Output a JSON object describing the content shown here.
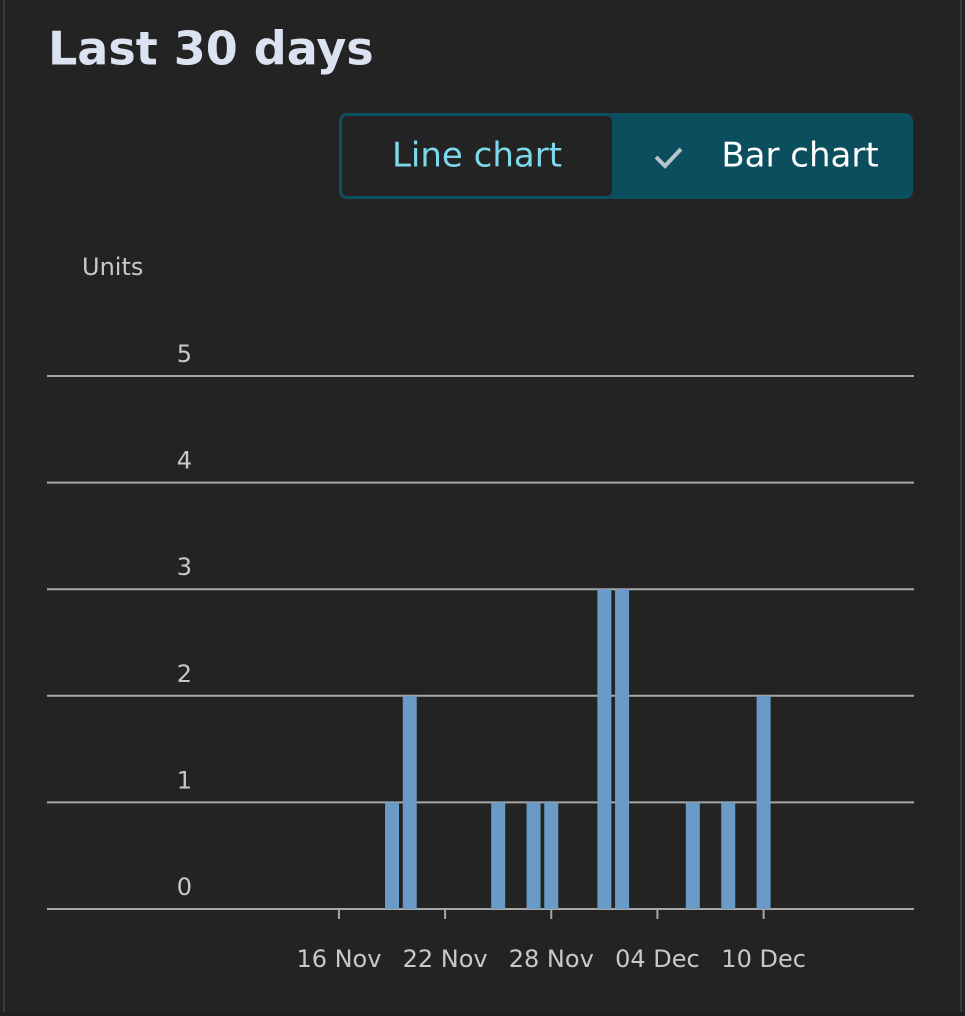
{
  "header": {
    "title": "Last 30 days"
  },
  "toggle": {
    "options": [
      "Line chart",
      "Bar chart"
    ]
  },
  "chart_data": {
    "type": "bar",
    "y_label": "Units",
    "color": "#6a9bc7",
    "grid": true,
    "categories": [
      null,
      null,
      null,
      null,
      null,
      null,
      null,
      null,
      null,
      null,
      null,
      null,
      null,
      null,
      null,
      null,
      "16 Nov",
      null,
      null,
      null,
      null,
      null,
      "22 Nov",
      null,
      null,
      null,
      null,
      null,
      "28 Nov",
      null,
      null,
      null,
      null,
      null,
      "04 Dec",
      null,
      null,
      null,
      null,
      null,
      "10 Dec",
      null,
      null,
      null,
      null,
      null,
      null,
      null,
      null
    ],
    "values": [
      0,
      0,
      0,
      0,
      0,
      0,
      0,
      0,
      0,
      0,
      0,
      0,
      0,
      0,
      0,
      0,
      0,
      0,
      0,
      1,
      2,
      0,
      0,
      0,
      0,
      1,
      0,
      1,
      1,
      0,
      0,
      3,
      3,
      0,
      0,
      0,
      1,
      0,
      1,
      0,
      2,
      0,
      0,
      0,
      0,
      0,
      0,
      0,
      0
    ],
    "ylim": [
      0,
      5
    ],
    "yticks": [
      0,
      1,
      2,
      3,
      4,
      5
    ]
  }
}
